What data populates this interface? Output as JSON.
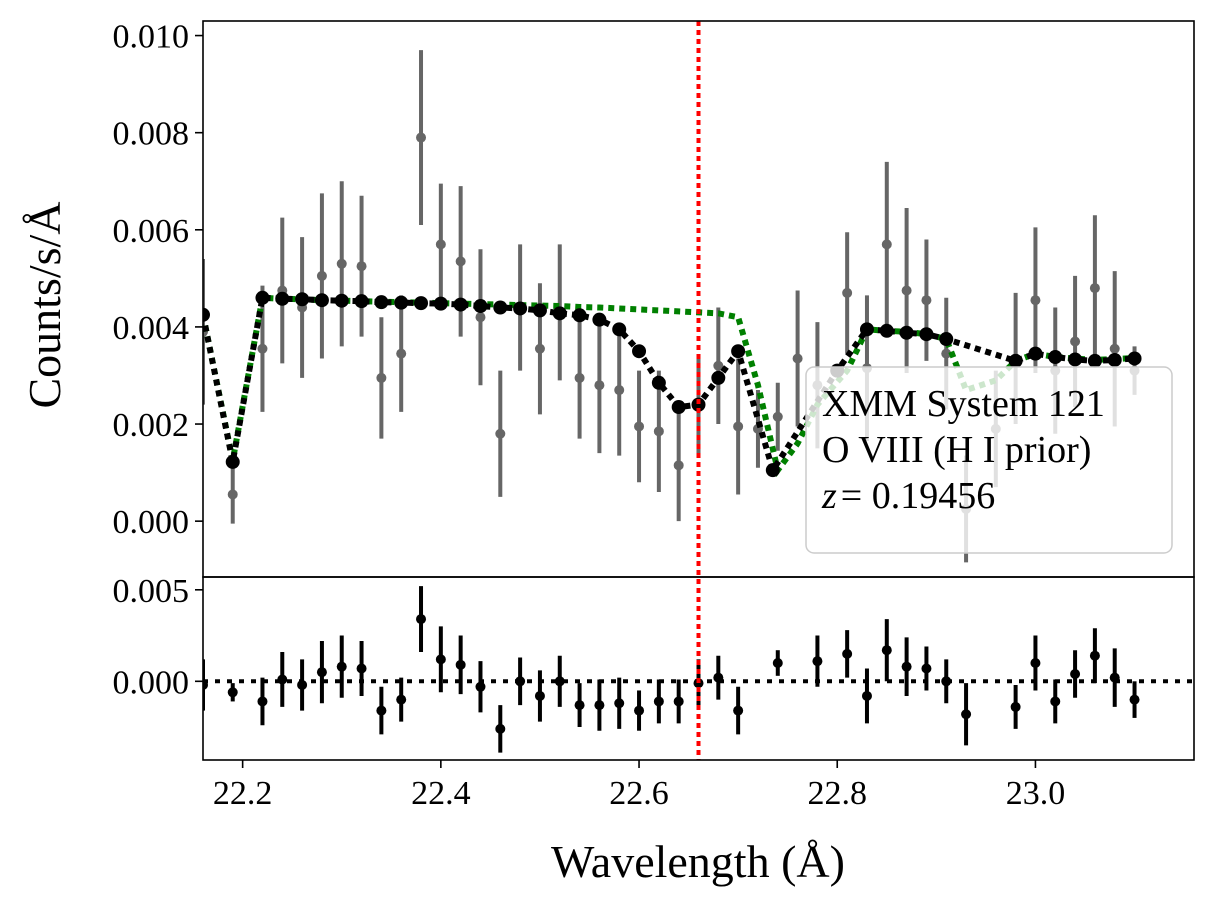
{
  "chart_data": {
    "type": "scatter",
    "xlabel": "Wavelength (Å)",
    "ylabel": "Counts/s/Å",
    "xlim": [
      22.16,
      23.16
    ],
    "x_ticks": [
      "22.2",
      "22.4",
      "22.6",
      "22.8",
      "23.0"
    ],
    "x_tick_values": [
      22.2,
      22.4,
      22.6,
      22.8,
      23.0
    ],
    "grid": false,
    "marker_line": {
      "x": 22.66,
      "color": "#ff0000",
      "style": "dotted"
    },
    "legend": {
      "placement": "lower-right",
      "lines": [
        "XMM System 121",
        "O VIII (H I prior)",
        "= 0.19456"
      ],
      "z_symbol": "z"
    },
    "top_panel": {
      "ylim": [
        -0.00115,
        0.0103
      ],
      "y_ticks": [
        "0.000",
        "0.002",
        "0.004",
        "0.006",
        "0.008",
        "0.010"
      ],
      "y_tick_values": [
        0.0,
        0.002,
        0.004,
        0.006,
        0.008,
        0.01
      ],
      "data": {
        "name": "data",
        "color": "#666666",
        "x": [
          22.16,
          22.19,
          22.22,
          22.24,
          22.26,
          22.28,
          22.3,
          22.32,
          22.34,
          22.36,
          22.38,
          22.4,
          22.42,
          22.44,
          22.46,
          22.48,
          22.5,
          22.52,
          22.54,
          22.56,
          22.58,
          22.6,
          22.62,
          22.64,
          22.66,
          22.68,
          22.7,
          22.72,
          22.74,
          22.76,
          22.78,
          22.81,
          22.83,
          22.85,
          22.87,
          22.89,
          22.91,
          22.93,
          22.96,
          22.98,
          23.0,
          23.02,
          23.04,
          23.06,
          23.08,
          23.1
        ],
        "y": [
          0.0039,
          0.00055,
          0.00355,
          0.00475,
          0.0044,
          0.00505,
          0.0053,
          0.00525,
          0.00295,
          0.00345,
          0.0079,
          0.0057,
          0.00535,
          0.0042,
          0.0018,
          0.0044,
          0.00355,
          0.0043,
          0.00295,
          0.0028,
          0.0027,
          0.00195,
          0.00185,
          0.00115,
          0.00235,
          0.0032,
          0.00195,
          0.0019,
          0.00215,
          0.00335,
          0.0028,
          0.0047,
          0.00315,
          0.0057,
          0.00475,
          0.00455,
          0.00345,
          0.00025,
          0.0019,
          0.00335,
          0.00455,
          0.0031,
          0.0037,
          0.0048,
          0.00355,
          0.0031
        ],
        "yerr": [
          0.0015,
          0.0006,
          0.0013,
          0.0015,
          0.00145,
          0.0017,
          0.0017,
          0.00145,
          0.00125,
          0.0012,
          0.0018,
          0.00125,
          0.00155,
          0.0014,
          0.0013,
          0.0013,
          0.00135,
          0.0014,
          0.00125,
          0.0014,
          0.00135,
          0.00115,
          0.00125,
          0.00115,
          0.00105,
          0.0012,
          0.0014,
          0.0008,
          0.0007,
          0.0014,
          0.0013,
          0.00125,
          0.0015,
          0.0017,
          0.0017,
          0.00125,
          0.00115,
          0.0011,
          0.0012,
          0.00135,
          0.0015,
          0.0013,
          0.00135,
          0.0015,
          0.0016,
          0.0005
        ]
      },
      "continuum_model": {
        "name": "continuum model",
        "color": "#008000",
        "style": "dotted",
        "x": [
          22.16,
          22.19,
          22.22,
          22.24,
          22.26,
          22.28,
          22.3,
          22.32,
          22.34,
          22.36,
          22.38,
          22.4,
          22.42,
          22.44,
          22.46,
          22.48,
          22.5,
          22.52,
          22.54,
          22.56,
          22.58,
          22.6,
          22.62,
          22.64,
          22.66,
          22.68,
          22.7,
          22.72,
          22.74,
          22.76,
          22.78,
          22.81,
          22.83,
          22.85,
          22.87,
          22.89,
          22.91,
          22.93,
          22.96,
          22.98,
          23.0,
          23.02,
          23.04,
          23.06,
          23.08,
          23.1
        ],
        "y": [
          0.00425,
          0.00125,
          0.0046,
          0.00458,
          0.00457,
          0.00455,
          0.00454,
          0.00453,
          0.00452,
          0.00451,
          0.0045,
          0.00449,
          0.00448,
          0.00447,
          0.00446,
          0.00445,
          0.00444,
          0.00443,
          0.00441,
          0.0044,
          0.00438,
          0.00436,
          0.00434,
          0.00432,
          0.0043,
          0.00428,
          0.0042,
          0.0028,
          0.00105,
          0.0016,
          0.0024,
          0.0031,
          0.00395,
          0.00392,
          0.0039,
          0.00385,
          0.00375,
          0.0027,
          0.0029,
          0.0033,
          0.00345,
          0.00338,
          0.00335,
          0.00332,
          0.00334,
          0.00336
        ]
      },
      "absorption_model": {
        "name": "absorption model",
        "color": "#000000",
        "style": "dotted",
        "x": [
          22.16,
          22.19,
          22.22,
          22.24,
          22.26,
          22.28,
          22.3,
          22.32,
          22.34,
          22.36,
          22.38,
          22.4,
          22.42,
          22.44,
          22.46,
          22.48,
          22.5,
          22.52,
          22.54,
          22.56,
          22.58,
          22.6,
          22.62,
          22.64,
          22.66,
          22.68,
          22.7,
          22.735,
          22.8,
          22.83,
          22.85,
          22.87,
          22.89,
          22.91,
          22.98,
          23.0,
          23.02,
          23.04,
          23.06,
          23.08,
          23.1
        ],
        "y": [
          0.00425,
          0.00122,
          0.0046,
          0.00458,
          0.00457,
          0.00455,
          0.00454,
          0.00453,
          0.00451,
          0.0045,
          0.00449,
          0.00448,
          0.00446,
          0.00443,
          0.0044,
          0.00438,
          0.00434,
          0.00428,
          0.00424,
          0.00415,
          0.00395,
          0.0035,
          0.00285,
          0.00235,
          0.0024,
          0.00295,
          0.0035,
          0.00105,
          0.0031,
          0.00395,
          0.00392,
          0.00388,
          0.00385,
          0.00375,
          0.0033,
          0.00345,
          0.00338,
          0.00333,
          0.0033,
          0.00332,
          0.00335
        ],
        "markers": [
          0,
          1,
          2,
          3,
          4,
          5,
          6,
          7,
          8,
          9,
          10,
          11,
          12,
          13,
          14,
          15,
          16,
          17,
          18,
          19,
          20,
          21,
          22,
          23,
          24,
          25,
          26,
          27,
          28,
          29,
          30,
          31,
          32,
          33,
          34,
          35,
          36,
          37,
          38,
          39,
          40
        ]
      }
    },
    "bottom_panel": {
      "ylim": [
        -0.0043,
        0.0057
      ],
      "y_ticks": [
        "0.000",
        "0.005"
      ],
      "y_tick_values": [
        0.0,
        0.005
      ],
      "zero_line": {
        "y": 0.0,
        "color": "#000000",
        "style": "dotted"
      },
      "residuals": {
        "name": "residuals",
        "color": "#000000",
        "x": [
          22.16,
          22.19,
          22.22,
          22.24,
          22.26,
          22.28,
          22.3,
          22.32,
          22.34,
          22.36,
          22.38,
          22.4,
          22.42,
          22.44,
          22.46,
          22.48,
          22.5,
          22.52,
          22.54,
          22.56,
          22.58,
          22.6,
          22.62,
          22.64,
          22.66,
          22.68,
          22.7,
          22.74,
          22.78,
          22.81,
          22.83,
          22.85,
          22.87,
          22.89,
          22.91,
          22.93,
          22.98,
          23.0,
          23.02,
          23.04,
          23.06,
          23.08,
          23.1
        ],
        "y": [
          -0.0002,
          -0.0006,
          -0.0011,
          0.0001,
          -0.0002,
          0.0005,
          0.0008,
          0.0007,
          -0.0016,
          -0.001,
          0.0034,
          0.0012,
          0.0009,
          -0.0003,
          -0.0026,
          0.0,
          -0.0008,
          0.0,
          -0.0013,
          -0.0013,
          -0.0012,
          -0.0016,
          -0.0011,
          -0.0011,
          -0.0001,
          0.0002,
          -0.0016,
          0.001,
          0.0011,
          0.0015,
          -0.0008,
          0.0017,
          0.0008,
          0.0007,
          0.0,
          -0.0018,
          -0.0014,
          0.001,
          -0.0011,
          0.0004,
          0.0014,
          0.0002,
          -0.001
        ],
        "yerr": [
          0.0014,
          0.0005,
          0.0013,
          0.0015,
          0.0014,
          0.0017,
          0.0017,
          0.0015,
          0.0013,
          0.0012,
          0.0018,
          0.0018,
          0.0016,
          0.0014,
          0.0013,
          0.0013,
          0.0014,
          0.0014,
          0.0012,
          0.0014,
          0.0014,
          0.0011,
          0.0012,
          0.0012,
          0.0013,
          0.0012,
          0.0013,
          0.0007,
          0.0014,
          0.0013,
          0.0015,
          0.0017,
          0.0016,
          0.0012,
          0.0012,
          0.0017,
          0.0012,
          0.0015,
          0.0012,
          0.0013,
          0.0015,
          0.0016,
          0.001
        ]
      }
    }
  }
}
